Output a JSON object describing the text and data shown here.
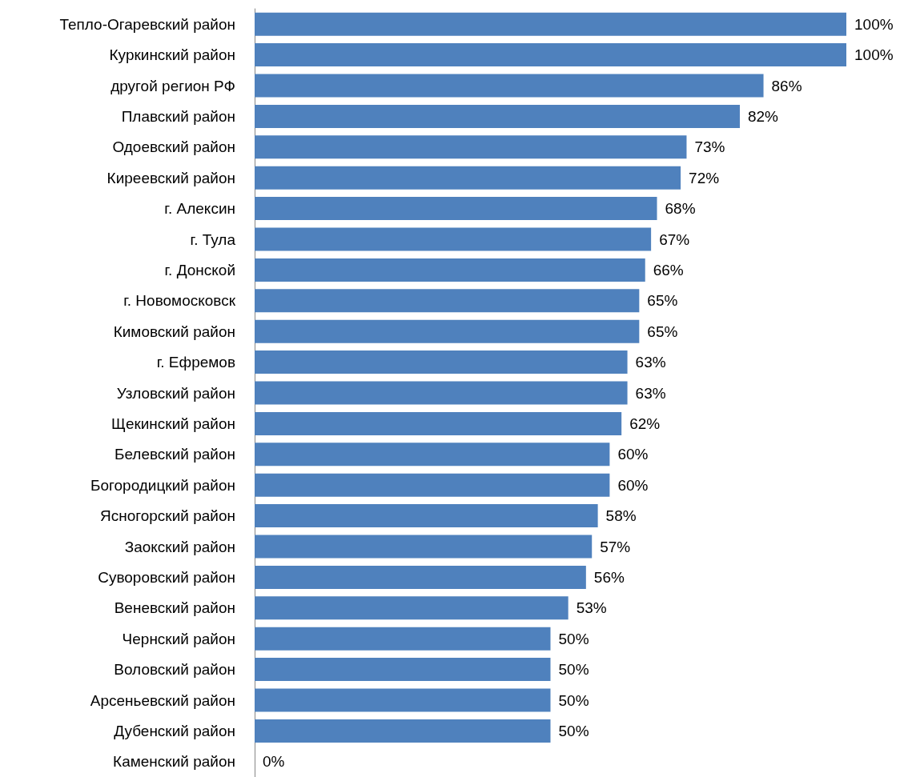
{
  "chart_data": {
    "type": "bar",
    "orientation": "horizontal",
    "color": "#4f81bd",
    "categories": [
      "Тепло-Огаревский район",
      "Куркинский район",
      "другой регион РФ",
      "Плавский район",
      "Одоевский район",
      "Киреевский район",
      "г. Алексин",
      "г. Тула",
      "г. Донской",
      "г. Новомосковск",
      "Кимовский район",
      "г. Ефремов",
      "Узловский район",
      "Щекинский район",
      "Белевский район",
      "Богородицкий район",
      "Ясногорский район",
      "Заокский район",
      "Суворовский район",
      "Веневский район",
      "Чернский район",
      "Воловский район",
      "Арсеньевский район",
      "Дубенский район",
      "Каменский район"
    ],
    "values": [
      100,
      100,
      86,
      82,
      73,
      72,
      68,
      67,
      66,
      65,
      65,
      63,
      63,
      62,
      60,
      60,
      58,
      57,
      56,
      53,
      50,
      50,
      50,
      50,
      0
    ],
    "value_labels": [
      "100%",
      "100%",
      "86%",
      "82%",
      "73%",
      "72%",
      "68%",
      "67%",
      "66%",
      "65%",
      "65%",
      "63%",
      "63%",
      "62%",
      "60%",
      "60%",
      "58%",
      "57%",
      "56%",
      "53%",
      "50%",
      "50%",
      "50%",
      "50%",
      "0%"
    ],
    "tick_labels": "y"
  }
}
